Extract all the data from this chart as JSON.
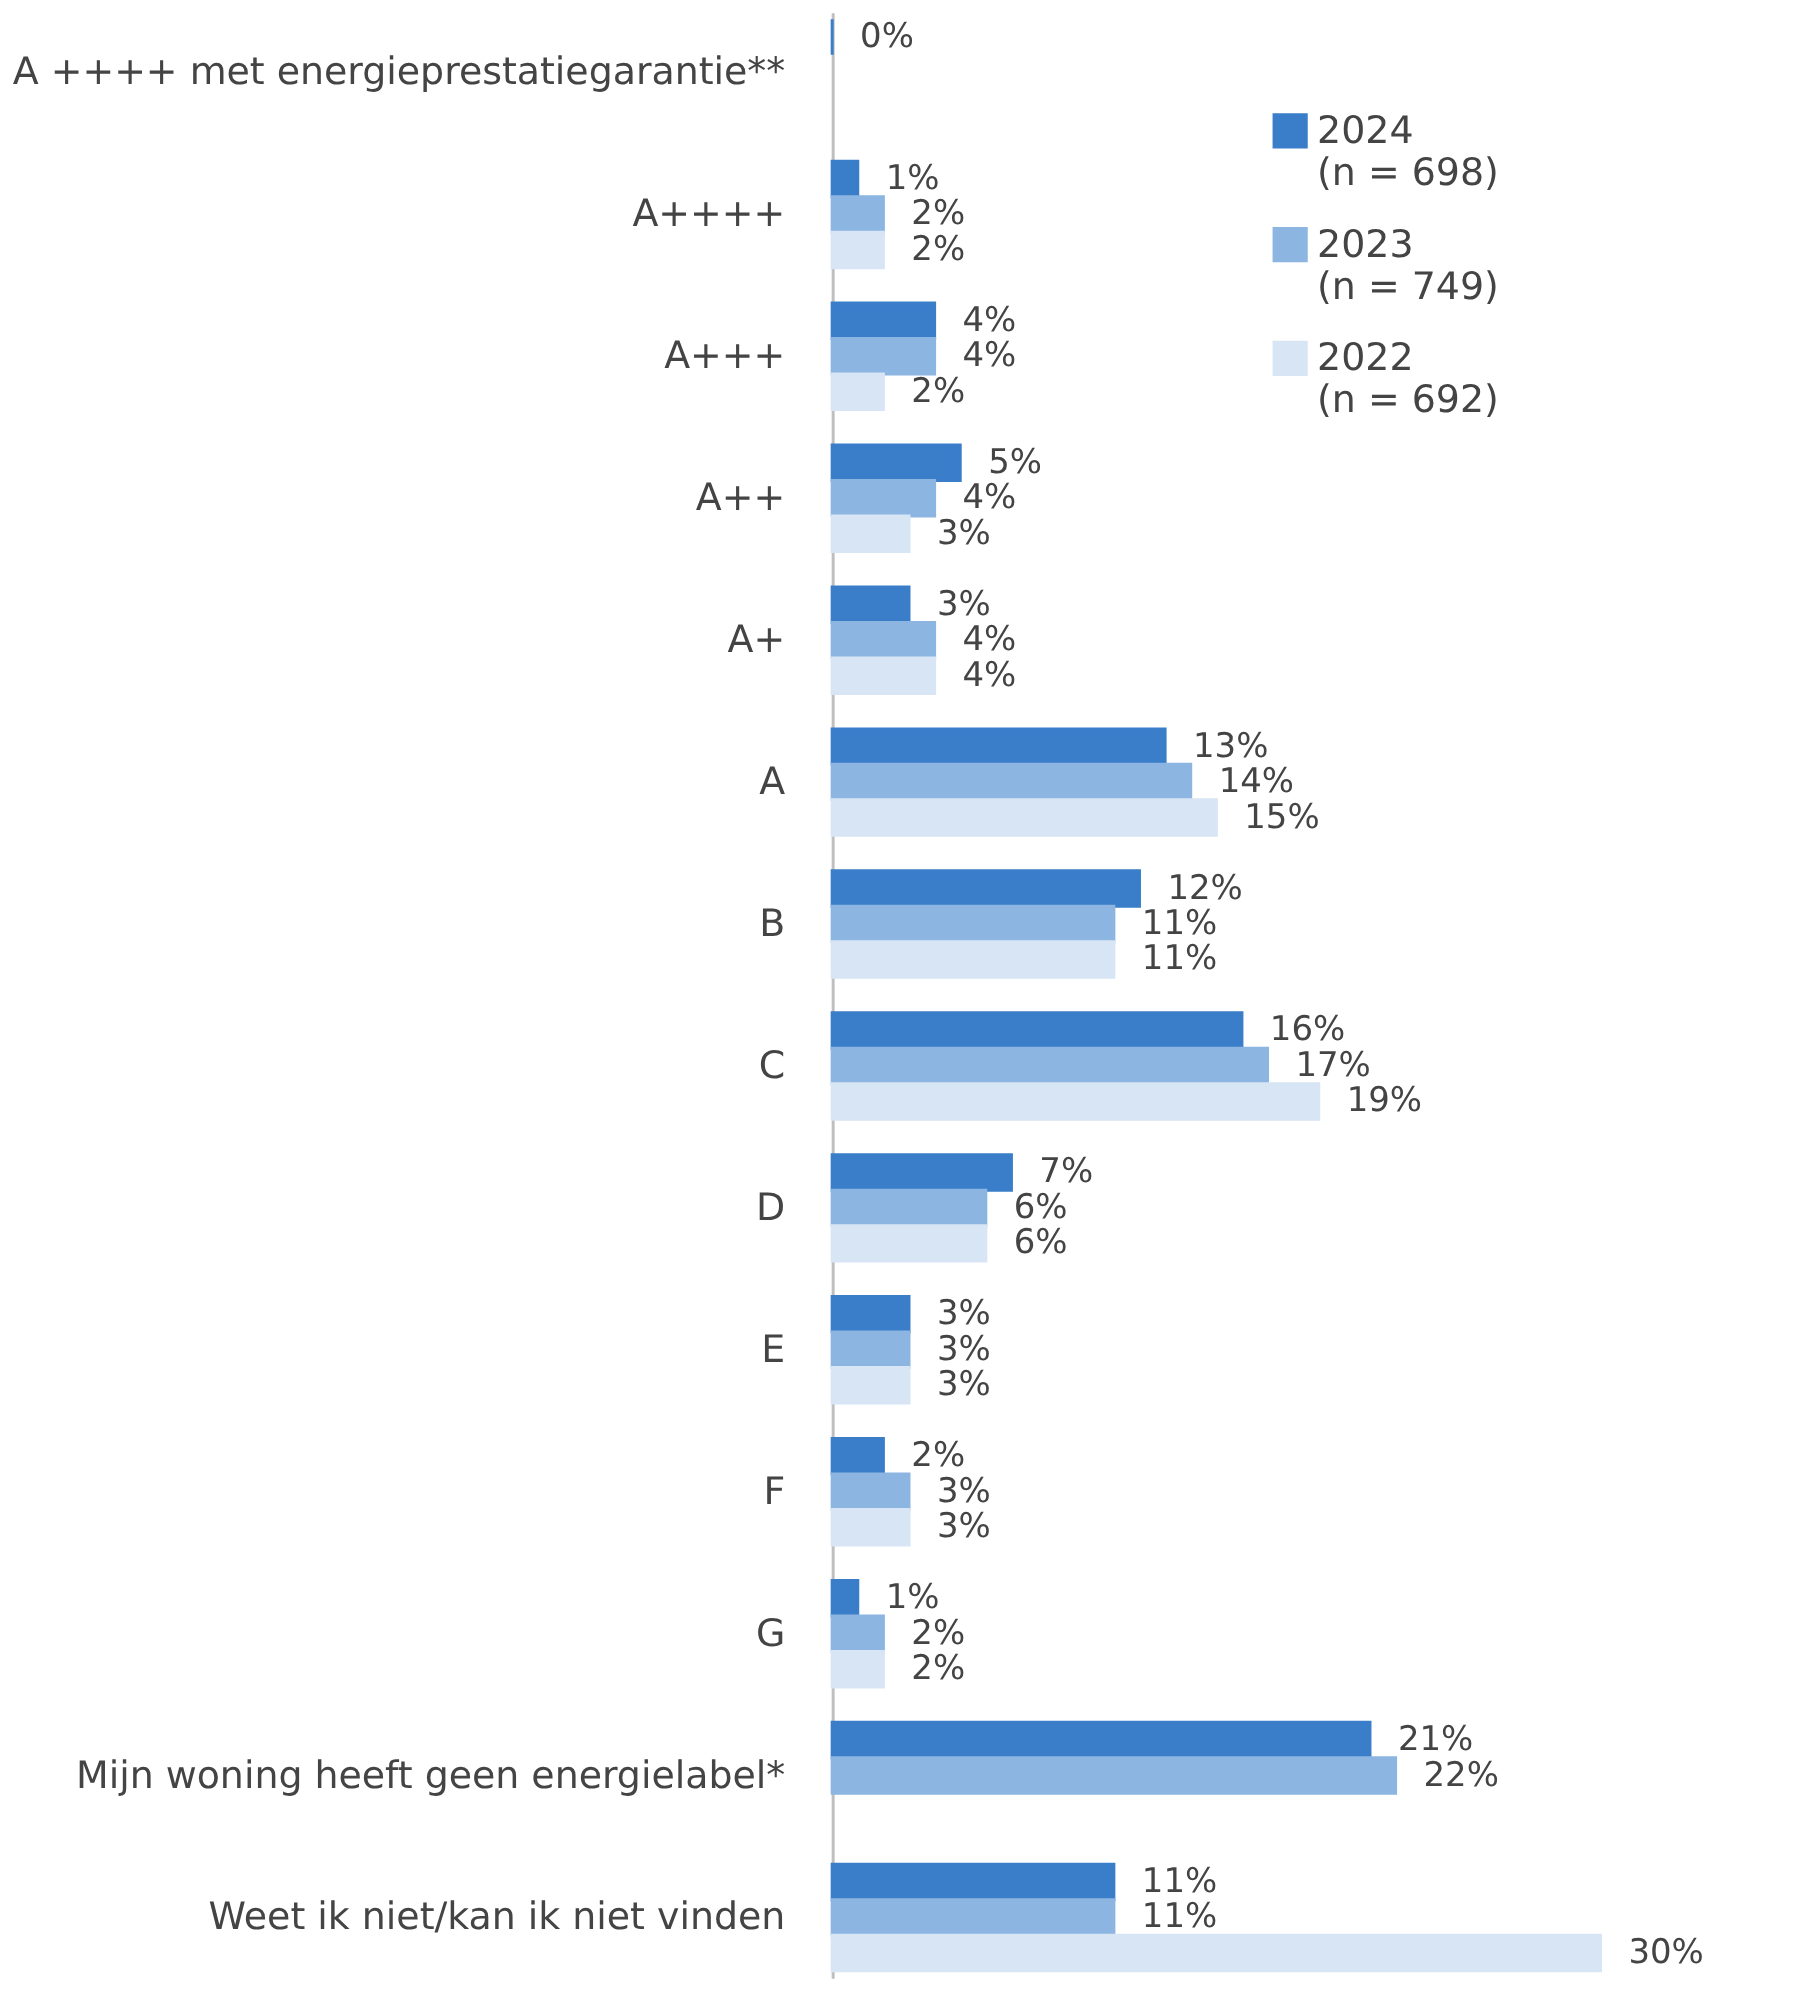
{
  "chart_data": {
    "type": "bar",
    "orientation": "horizontal",
    "legend": "top right",
    "categories": [
      "A ++++ met energieprestatiegarantie**",
      "A++++",
      "A+++",
      "A++",
      "A+",
      "A",
      "B",
      "C",
      "D",
      "E",
      "F",
      "G",
      "Mijn woning heeft geen energielabel*",
      "Weet ik niet/kan ik niet vinden"
    ],
    "series": [
      {
        "name": "2024 (n = 698)",
        "color": "#3a7dc9",
        "values": [
          0,
          1,
          4,
          5,
          3,
          13,
          12,
          16,
          7,
          3,
          2,
          1,
          21,
          11
        ],
        "value_labels": [
          "0%",
          "1%",
          "4%",
          "5%",
          "3%",
          "13%",
          "12%",
          "16%",
          "7%",
          "3%",
          "2%",
          "1%",
          "21%",
          "11%"
        ]
      },
      {
        "name": "2023 (n = 749)",
        "color": "#8cb5e1",
        "values": [
          null,
          2,
          4,
          4,
          4,
          14,
          11,
          17,
          6,
          3,
          3,
          2,
          22,
          11
        ],
        "value_labels": [
          null,
          "2%",
          "4%",
          "4%",
          "4%",
          "14%",
          "11%",
          "17%",
          "6%",
          "3%",
          "3%",
          "2%",
          "22%",
          "11%"
        ]
      },
      {
        "name": "2022 (n = 692)",
        "color": "#d8e5f4",
        "values": [
          null,
          2,
          2,
          3,
          4,
          15,
          11,
          19,
          6,
          3,
          3,
          2,
          null,
          30
        ],
        "value_labels": [
          null,
          "2%",
          "2%",
          "3%",
          "4%",
          "15%",
          "11%",
          "19%",
          "6%",
          "3%",
          "3%",
          "2%",
          null,
          "30%"
        ]
      }
    ]
  }
}
